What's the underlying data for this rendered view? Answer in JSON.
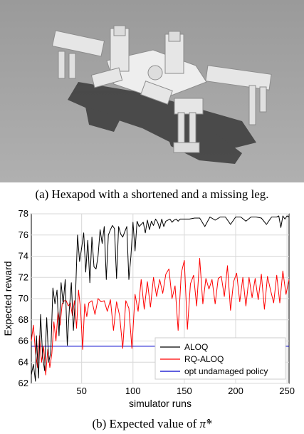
{
  "captions": {
    "a": "(a) Hexapod with a shortened and a missing leg.",
    "b_prefix": "(b) Expected value of ",
    "b_symbol": "π̂*"
  },
  "colors": {
    "background_floor": "#a9a9a9",
    "robot": "#eeeeee",
    "aloq": "#000000",
    "rq_aloq": "#ff0000",
    "opt_undamaged": "#0000cc",
    "grid": "#d8d8d8"
  },
  "chart_data": {
    "type": "line",
    "xlabel": "simulator runs",
    "ylabel": "Expected reward",
    "xlim": [
      1,
      252
    ],
    "ylim": [
      62,
      78
    ],
    "xticks": [
      50,
      100,
      150,
      200,
      250
    ],
    "yticks": [
      62,
      64,
      66,
      68,
      70,
      72,
      74,
      76,
      78
    ],
    "grid": true,
    "legend_position": "bottom-right",
    "series": [
      {
        "name": "ALOQ",
        "color": "#000000",
        "x": [
          1,
          3,
          5,
          6,
          8,
          10,
          12,
          14,
          16,
          18,
          20,
          22,
          24,
          26,
          28,
          30,
          32,
          34,
          36,
          38,
          40,
          42,
          44,
          46,
          48,
          50,
          52,
          54,
          56,
          58,
          60,
          62,
          64,
          66,
          68,
          70,
          72,
          74,
          76,
          78,
          80,
          82,
          84,
          86,
          88,
          90,
          92,
          94,
          96,
          98,
          100,
          102,
          104,
          106,
          108,
          110,
          112,
          114,
          116,
          118,
          120,
          122,
          124,
          126,
          128,
          130,
          132,
          134,
          136,
          138,
          140,
          142,
          144,
          146,
          150,
          155,
          160,
          165,
          170,
          175,
          180,
          185,
          190,
          195,
          200,
          205,
          210,
          215,
          220,
          225,
          230,
          235,
          240,
          242,
          244,
          246,
          248,
          250,
          252
        ],
        "y": [
          62.8,
          63.8,
          62.2,
          66.5,
          62.5,
          68.5,
          64.5,
          63.2,
          68.2,
          64.0,
          65.0,
          71.0,
          69.5,
          70.8,
          66.5,
          71.5,
          69.5,
          71.8,
          65.6,
          69.0,
          71.5,
          67.0,
          70.2,
          76.0,
          73.5,
          74.8,
          76.2,
          72.5,
          75.5,
          71.5,
          75.8,
          73.0,
          72.8,
          74.0,
          76.5,
          75.2,
          76.8,
          71.8,
          76.0,
          76.5,
          76.9,
          76.6,
          71.9,
          76.8,
          76.1,
          75.8,
          76.3,
          76.8,
          71.8,
          74.0,
          77.2,
          74.5,
          77.3,
          76.8,
          77.0,
          77.2,
          76.2,
          77.4,
          76.5,
          77.3,
          76.9,
          77.5,
          77.2,
          76.6,
          77.5,
          76.8,
          77.3,
          77.4,
          77.5,
          77.2,
          77.4,
          77.5,
          77.3,
          77.5,
          77.5,
          77.5,
          77.6,
          77.6,
          76.8,
          77.7,
          77.4,
          77.7,
          77.7,
          77.0,
          77.7,
          77.7,
          77.3,
          77.7,
          77.7,
          77.6,
          77.0,
          77.7,
          77.7,
          77.8,
          76.7,
          77.8,
          77.5,
          77.8,
          77.7
        ]
      },
      {
        "name": "RQ-ALOQ",
        "color": "#ff0000",
        "x": [
          1,
          3,
          5,
          7,
          9,
          11,
          13,
          15,
          17,
          19,
          21,
          23,
          25,
          27,
          29,
          31,
          33,
          35,
          37,
          39,
          41,
          43,
          45,
          47,
          49,
          51,
          53,
          55,
          57,
          60,
          63,
          66,
          69,
          72,
          75,
          78,
          81,
          84,
          87,
          90,
          93,
          96,
          99,
          102,
          105,
          108,
          111,
          114,
          117,
          120,
          123,
          126,
          129,
          132,
          135,
          138,
          141,
          144,
          147,
          150,
          153,
          156,
          159,
          162,
          165,
          168,
          171,
          174,
          177,
          180,
          183,
          186,
          189,
          192,
          195,
          198,
          201,
          204,
          207,
          210,
          213,
          216,
          219,
          222,
          225,
          228,
          231,
          234,
          237,
          240,
          243,
          246,
          249,
          252
        ],
        "y": [
          66.0,
          67.5,
          65.0,
          63.5,
          66.5,
          64.0,
          65.5,
          62.8,
          65.2,
          63.5,
          64.8,
          67.8,
          66.0,
          68.8,
          67.5,
          69.5,
          69.8,
          69.8,
          69.3,
          69.6,
          68.4,
          69.8,
          67.2,
          70.8,
          69.0,
          65.2,
          69.5,
          68.3,
          69.6,
          69.8,
          68.5,
          70.0,
          69.7,
          69.8,
          68.8,
          69.9,
          67.0,
          69.7,
          68.4,
          65.3,
          69.8,
          69.1,
          65.3,
          70.4,
          68.8,
          71.8,
          69.0,
          71.6,
          69.2,
          72.0,
          70.2,
          71.8,
          70.5,
          72.3,
          72.8,
          70.0,
          71.2,
          67.0,
          72.4,
          73.6,
          67.1,
          71.4,
          72.2,
          69.3,
          73.8,
          69.5,
          71.9,
          70.9,
          71.8,
          69.5,
          71.9,
          72.1,
          70.2,
          73.1,
          68.9,
          71.6,
          72.4,
          69.7,
          72.0,
          69.3,
          72.0,
          70.1,
          71.9,
          69.9,
          72.3,
          69.0,
          72.1,
          70.8,
          69.6,
          72.2,
          69.6,
          72.6,
          70.4,
          71.8
        ]
      },
      {
        "name": "opt undamaged policy",
        "color": "#0000cc",
        "x": [
          1,
          252
        ],
        "y": [
          65.5,
          65.5
        ]
      }
    ]
  }
}
